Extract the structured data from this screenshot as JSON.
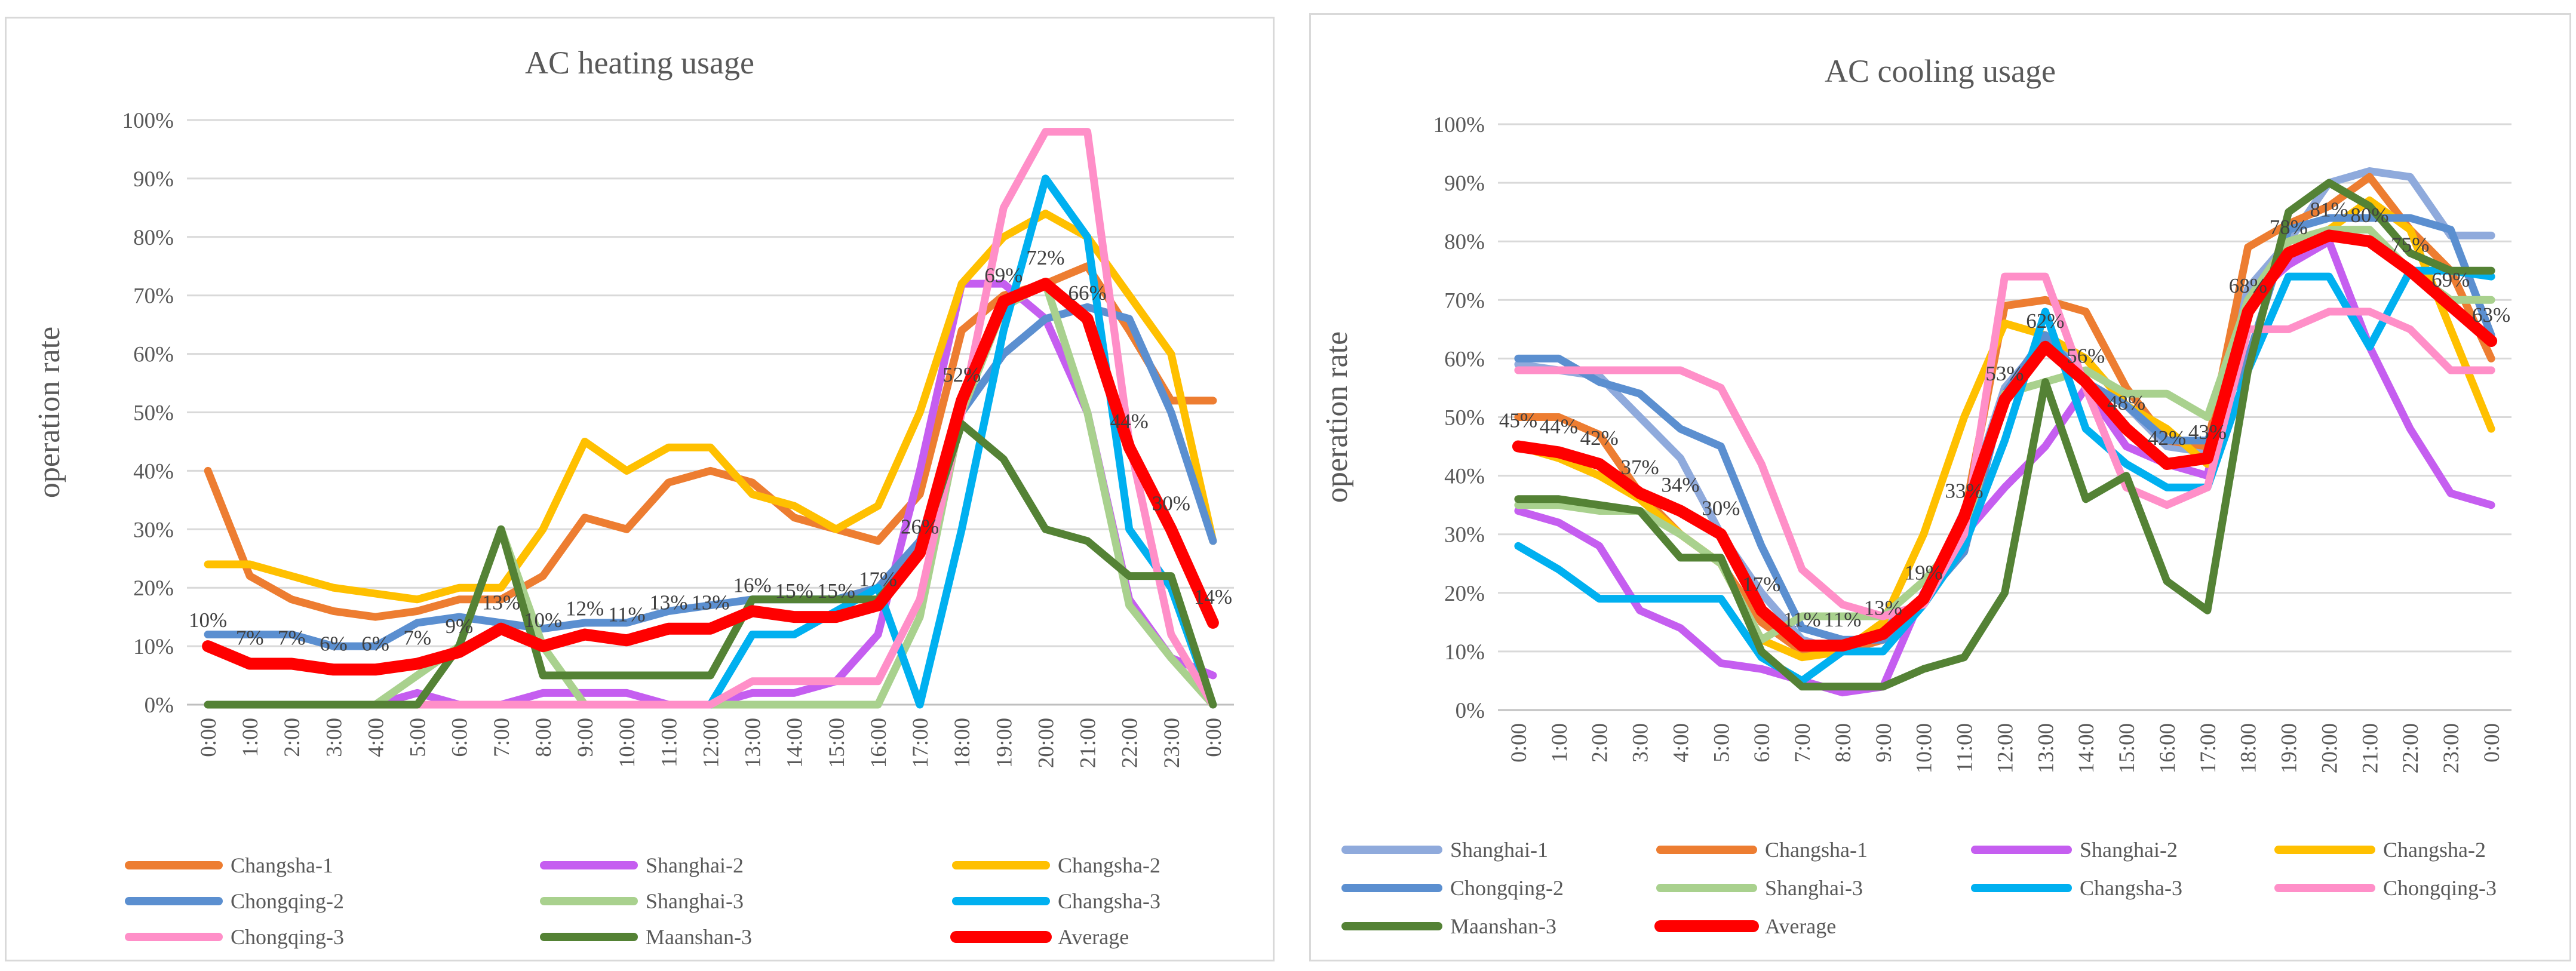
{
  "colors": {
    "Shanghai-1": "#8faadc",
    "Changsha-1": "#ed7d31",
    "Shanghai-2": "#c55ef0",
    "Changsha-2": "#ffc000",
    "Chongqing-2": "#5b8fd0",
    "Shanghai-3": "#a9d18e",
    "Changsha-3": "#00b0f0",
    "Chongqing-3": "#ff8fc8",
    "Maanshan-3": "#548235",
    "Average": "#ff0000"
  },
  "chart_data": [
    {
      "type": "line",
      "title": "AC heating usage",
      "xlabel": "",
      "ylabel": "operation rate",
      "ylim": [
        0,
        100
      ],
      "y_ticks": [
        "0%",
        "10%",
        "20%",
        "30%",
        "40%",
        "50%",
        "60%",
        "70%",
        "80%",
        "90%",
        "100%"
      ],
      "categories": [
        "0:00",
        "1:00",
        "2:00",
        "3:00",
        "4:00",
        "5:00",
        "6:00",
        "7:00",
        "8:00",
        "9:00",
        "10:00",
        "11:00",
        "12:00",
        "13:00",
        "14:00",
        "15:00",
        "16:00",
        "17:00",
        "18:00",
        "19:00",
        "20:00",
        "21:00",
        "22:00",
        "23:00",
        "0:00"
      ],
      "series": [
        {
          "name": "Changsha-1",
          "values": [
            40,
            22,
            18,
            16,
            15,
            16,
            18,
            18,
            22,
            32,
            30,
            38,
            40,
            38,
            32,
            30,
            28,
            36,
            64,
            70,
            72,
            75,
            64,
            52,
            52
          ]
        },
        {
          "name": "Shanghai-2",
          "values": [
            0,
            0,
            0,
            0,
            0,
            2,
            0,
            0,
            2,
            2,
            2,
            0,
            0,
            2,
            2,
            4,
            12,
            40,
            72,
            72,
            66,
            50,
            18,
            8,
            5
          ]
        },
        {
          "name": "Changsha-2",
          "values": [
            24,
            24,
            22,
            20,
            19,
            18,
            20,
            20,
            30,
            45,
            40,
            44,
            44,
            36,
            34,
            30,
            34,
            50,
            72,
            80,
            84,
            80,
            70,
            60,
            28
          ]
        },
        {
          "name": "Chongqing-2",
          "values": [
            12,
            12,
            12,
            10,
            10,
            14,
            15,
            14,
            13,
            14,
            14,
            16,
            17,
            18,
            18,
            18,
            20,
            28,
            50,
            60,
            66,
            68,
            66,
            50,
            28
          ]
        },
        {
          "name": "Shanghai-3",
          "values": [
            0,
            0,
            0,
            0,
            0,
            5,
            10,
            30,
            10,
            0,
            0,
            0,
            0,
            0,
            0,
            0,
            0,
            15,
            50,
            68,
            72,
            50,
            17,
            8,
            0
          ]
        },
        {
          "name": "Changsha-3",
          "values": [
            0,
            0,
            0,
            0,
            0,
            0,
            0,
            0,
            0,
            0,
            0,
            0,
            0,
            12,
            12,
            16,
            20,
            0,
            30,
            64,
            90,
            80,
            30,
            20,
            0
          ]
        },
        {
          "name": "Chongqing-3",
          "values": [
            0,
            0,
            0,
            0,
            0,
            0,
            0,
            0,
            0,
            0,
            0,
            0,
            0,
            4,
            4,
            4,
            4,
            18,
            50,
            85,
            98,
            98,
            45,
            12,
            0
          ]
        },
        {
          "name": "Maanshan-3",
          "values": [
            0,
            0,
            0,
            0,
            0,
            0,
            10,
            30,
            5,
            5,
            5,
            5,
            5,
            18,
            18,
            18,
            18,
            26,
            48,
            42,
            30,
            28,
            22,
            22,
            0
          ]
        },
        {
          "name": "Average",
          "values": [
            10,
            7,
            7,
            6,
            6,
            7,
            9,
            13,
            10,
            12,
            11,
            13,
            13,
            16,
            15,
            15,
            17,
            26,
            52,
            69,
            72,
            66,
            44,
            30,
            14
          ]
        }
      ],
      "data_labels": [
        "10%",
        "7%",
        "7%",
        "6%",
        "6%",
        "7%",
        "9%",
        "13%",
        "10%",
        "12%",
        "11%",
        "13%",
        "13%",
        "16%",
        "15%",
        "15%",
        "17%",
        "26%",
        "52%",
        "69%",
        "72%",
        "66%",
        "44%",
        "30%",
        "14%"
      ],
      "legend": {
        "position": "bottom",
        "items": [
          "Changsha-1",
          "Shanghai-2",
          "Changsha-2",
          "Chongqing-2",
          "Shanghai-3",
          "Changsha-3",
          "Chongqing-3",
          "Maanshan-3",
          "Average"
        ]
      }
    },
    {
      "type": "line",
      "title": "AC cooling usage",
      "xlabel": "",
      "ylabel": "operation rate",
      "ylim": [
        0,
        100
      ],
      "y_ticks": [
        "0%",
        "10%",
        "20%",
        "30%",
        "40%",
        "50%",
        "60%",
        "70%",
        "80%",
        "90%",
        "100%"
      ],
      "categories": [
        "0:00",
        "1:00",
        "2:00",
        "3:00",
        "4:00",
        "5:00",
        "6:00",
        "7:00",
        "8:00",
        "9:00",
        "10:00",
        "11:00",
        "12:00",
        "13:00",
        "14:00",
        "15:00",
        "16:00",
        "17:00",
        "18:00",
        "19:00",
        "20:00",
        "21:00",
        "22:00",
        "23:00",
        "0:00"
      ],
      "series": [
        {
          "name": "Shanghai-1",
          "values": [
            59,
            58,
            57,
            50,
            43,
            30,
            20,
            12,
            10,
            14,
            19,
            34,
            55,
            63,
            60,
            52,
            45,
            44,
            72,
            80,
            90,
            92,
            91,
            81,
            81
          ]
        },
        {
          "name": "Changsha-1",
          "values": [
            50,
            50,
            47,
            37,
            30,
            25,
            15,
            10,
            10,
            12,
            18,
            33,
            69,
            70,
            68,
            55,
            46,
            45,
            79,
            83,
            86,
            91,
            82,
            75,
            60
          ]
        },
        {
          "name": "Shanghai-2",
          "values": [
            34,
            32,
            28,
            17,
            14,
            8,
            7,
            5,
            3,
            4,
            20,
            30,
            38,
            45,
            55,
            45,
            42,
            40,
            70,
            76,
            80,
            62,
            48,
            37,
            35
          ]
        },
        {
          "name": "Changsha-2",
          "values": [
            45,
            43,
            40,
            36,
            30,
            25,
            12,
            9,
            10,
            15,
            30,
            50,
            66,
            64,
            60,
            52,
            48,
            42,
            68,
            80,
            82,
            87,
            82,
            65,
            48
          ]
        },
        {
          "name": "Chongqing-2",
          "values": [
            60,
            60,
            56,
            54,
            48,
            45,
            28,
            14,
            12,
            12,
            19,
            27,
            54,
            64,
            56,
            52,
            46,
            46,
            60,
            82,
            84,
            84,
            84,
            82,
            64
          ]
        },
        {
          "name": "Shanghai-3",
          "values": [
            35,
            35,
            34,
            34,
            30,
            25,
            12,
            16,
            16,
            16,
            22,
            30,
            54,
            56,
            58,
            54,
            54,
            50,
            70,
            80,
            82,
            82,
            75,
            70,
            70
          ]
        },
        {
          "name": "Changsha-3",
          "values": [
            28,
            24,
            19,
            19,
            19,
            19,
            9,
            5,
            10,
            10,
            18,
            28,
            46,
            68,
            48,
            42,
            38,
            38,
            58,
            74,
            74,
            62,
            75,
            75,
            74
          ]
        },
        {
          "name": "Chongqing-3",
          "values": [
            58,
            58,
            58,
            58,
            58,
            55,
            42,
            24,
            18,
            16,
            18,
            30,
            74,
            74,
            55,
            38,
            35,
            38,
            65,
            65,
            68,
            68,
            65,
            58,
            58
          ]
        },
        {
          "name": "Maanshan-3",
          "values": [
            36,
            36,
            35,
            34,
            26,
            26,
            10,
            4,
            4,
            4,
            7,
            9,
            20,
            56,
            36,
            40,
            22,
            17,
            58,
            85,
            90,
            86,
            78,
            75,
            75
          ]
        },
        {
          "name": "Average",
          "values": [
            45,
            44,
            42,
            37,
            34,
            30,
            17,
            11,
            11,
            13,
            19,
            33,
            53,
            62,
            56,
            48,
            42,
            43,
            68,
            78,
            81,
            80,
            75,
            69,
            63
          ]
        }
      ],
      "data_labels": [
        "45%",
        "44%",
        "42%",
        "37%",
        "34%",
        "30%",
        "17%",
        "11%",
        "11%",
        "13%",
        "19%",
        "33%",
        "53%",
        "62%",
        "56%",
        "48%",
        "42%",
        "43%",
        "68%",
        "78%",
        "81%",
        "80%",
        "75%",
        "69%",
        "63%"
      ],
      "legend": {
        "position": "bottom",
        "items": [
          "Shanghai-1",
          "Changsha-1",
          "Shanghai-2",
          "Changsha-2",
          "Chongqing-2",
          "Shanghai-3",
          "Changsha-3",
          "Chongqing-3",
          "Maanshan-3",
          "Average"
        ]
      }
    }
  ]
}
